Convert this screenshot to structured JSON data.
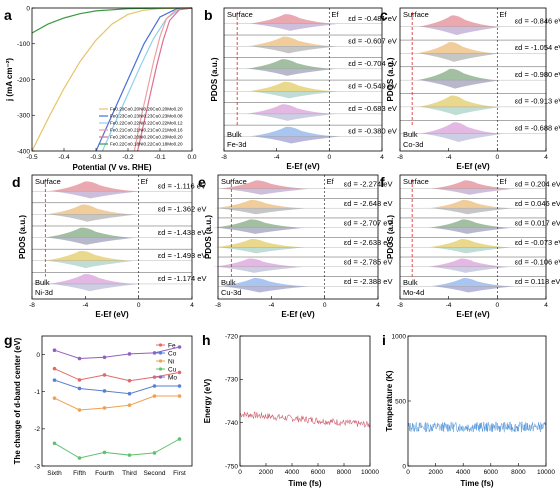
{
  "chart_data": [
    {
      "panel": "a",
      "type": "line",
      "xlabel": "Potential (V vs. RHE)",
      "ylabel": "j (mA cm⁻²)",
      "xlim": [
        -0.5,
        0.0
      ],
      "ylim": [
        -400,
        0
      ],
      "xticks": [
        "-0.5",
        "-0.4",
        "-0.3",
        "-0.2",
        "-0.1",
        "0.0"
      ],
      "yticks": [
        "0",
        "-100",
        "-200",
        "-300",
        "-400"
      ],
      "legend_position": "lower-right",
      "series": [
        {
          "name": "Fe0.20Co0.20Ni0.20Cu0.20Mo0.20",
          "color": "#e8c36a",
          "x": [
            -0.5,
            -0.45,
            -0.4,
            -0.35,
            -0.3,
            -0.25,
            -0.2,
            -0.15,
            -0.1,
            -0.05,
            0.0
          ],
          "y": [
            -400,
            -310,
            -225,
            -150,
            -90,
            -45,
            -18,
            -6,
            -2,
            -0.5,
            0
          ]
        },
        {
          "name": "Fe0.23Co0.23Ni0.23Cu0.23Mo0.08",
          "color": "#4a6fd6",
          "x": [
            -0.3,
            -0.25,
            -0.2,
            -0.15,
            -0.1,
            -0.05,
            0.0
          ],
          "y": [
            -400,
            -300,
            -200,
            -100,
            -25,
            -3,
            0
          ]
        },
        {
          "name": "Fe0.22Co0.22Ni0.22Cu0.22Mo0.12",
          "color": "#8fd0f0",
          "x": [
            -0.28,
            -0.24,
            -0.2,
            -0.16,
            -0.12,
            -0.08,
            -0.04,
            0.0
          ],
          "y": [
            -400,
            -320,
            -240,
            -160,
            -85,
            -30,
            -4,
            0
          ]
        },
        {
          "name": "Fe0.21Co0.21Ni0.21Cu0.21Mo0.16",
          "color": "#f0a0a0",
          "x": [
            -0.18,
            -0.16,
            -0.14,
            -0.12,
            -0.1,
            -0.08,
            -0.05,
            0.0
          ],
          "y": [
            -400,
            -310,
            -230,
            -150,
            -80,
            -30,
            -5,
            0
          ]
        },
        {
          "name": "Fe0.20Co0.20Ni0.20Cu0.20Mo0.20",
          "color": "#e07090",
          "x": [
            -0.17,
            -0.15,
            -0.13,
            -0.11,
            -0.09,
            -0.07,
            -0.04,
            0.0
          ],
          "y": [
            -400,
            -320,
            -240,
            -160,
            -90,
            -35,
            -5,
            0
          ]
        },
        {
          "name": "Fe0.22Co0.18Ni0.22Cu0.18Mo0.20",
          "color": "#3a9a40",
          "x": [
            -0.5,
            -0.45,
            -0.4,
            -0.35,
            -0.3,
            -0.2,
            -0.1,
            0.0
          ],
          "y": [
            -70,
            -45,
            -28,
            -16,
            -8,
            -2,
            -0.5,
            0
          ]
        }
      ]
    },
    {
      "panel": "b",
      "type": "area",
      "element": "Fe-3d",
      "xlabel": "E-Ef (eV)",
      "ylabel": "PDOS (a.u.)",
      "xlim": [
        -8,
        4
      ],
      "xticks": [
        "-8",
        "-4",
        "0",
        "4"
      ],
      "surface_label": "Surface",
      "bulk_label": "Bulk",
      "fermi_label": "Ef",
      "ed_values": [
        -0.481,
        -0.607,
        -0.704,
        -0.549,
        -0.683,
        -0.38
      ],
      "ed_labels": [
        "εd = -0.481 eV",
        "εd = -0.607 eV",
        "εd = -0.704 eV",
        "εd = -0.549 eV",
        "εd = -0.683 eV",
        "εd = -0.380 eV"
      ]
    },
    {
      "panel": "c",
      "type": "area",
      "element": "Co-3d",
      "xlabel": "E-Ef (eV)",
      "ylabel": "PDOS (a.u.)",
      "xlim": [
        -8,
        4
      ],
      "xticks": [
        "-8",
        "-4",
        "0",
        "4"
      ],
      "surface_label": "Surface",
      "bulk_label": "Bulk",
      "fermi_label": "Ef",
      "ed_values": [
        -0.846,
        -1.054,
        -0.98,
        -0.913,
        -0.688
      ],
      "ed_labels": [
        "εd = -0.846 eV",
        "εd = -1.054 eV",
        "εd = -0.980 eV",
        "εd = -0.913 eV",
        "εd = -0.688 eV"
      ]
    },
    {
      "panel": "d",
      "type": "area",
      "element": "Ni-3d",
      "xlabel": "E-Ef (eV)",
      "ylabel": "PDOS (a.u.)",
      "xlim": [
        -8,
        4
      ],
      "xticks": [
        "-8",
        "-4",
        "0",
        "4"
      ],
      "surface_label": "Surface",
      "bulk_label": "Bulk",
      "fermi_label": "Ef",
      "ed_values": [
        -1.116,
        -1.362,
        -1.438,
        -1.493,
        -1.174
      ],
      "ed_labels": [
        "εd = -1.116 eV",
        "εd = -1.362 eV",
        "εd = -1.438 eV",
        "εd = -1.493 eV",
        "εd = -1.174 eV"
      ]
    },
    {
      "panel": "e",
      "type": "area",
      "element": "Cu-3d",
      "xlabel": "E-Ef (eV)",
      "ylabel": "PDOS (a.u.)",
      "xlim": [
        -8,
        4
      ],
      "xticks": [
        "-8",
        "-4",
        "0",
        "4"
      ],
      "surface_label": "Surface",
      "bulk_label": "Bulk",
      "fermi_label": "Ef",
      "ed_values": [
        -2.274,
        -2.648,
        -2.707,
        -2.633,
        -2.785,
        -2.388
      ],
      "ed_labels": [
        "εd = -2.274 eV",
        "εd = -2.648 eV",
        "εd = -2.707 eV",
        "εd = -2.633 eV",
        "εd = -2.785 eV",
        "εd = -2.388 eV"
      ]
    },
    {
      "panel": "f",
      "type": "area",
      "element": "Mo-4d",
      "xlabel": "E-Ef (eV)",
      "ylabel": "PDOS (a.u.)",
      "xlim": [
        -8,
        4
      ],
      "xticks": [
        "-8",
        "-4",
        "0",
        "4"
      ],
      "surface_label": "Surface",
      "bulk_label": "Bulk",
      "fermi_label": "Ef",
      "ed_values": [
        0.204,
        0.046,
        0.017,
        -0.073,
        -0.106,
        0.118
      ],
      "ed_labels": [
        "εd = 0.204 eV",
        "εd = 0.046 eV",
        "εd = 0.017 eV",
        "εd = -0.073 eV",
        "εd = -0.106 eV",
        "εd = 0.118 eV"
      ]
    },
    {
      "panel": "g",
      "type": "line",
      "ylabel": "The change of d-band center (eV)",
      "categories": [
        "Sixth",
        "Fifth",
        "Fourth",
        "Third",
        "Second",
        "First"
      ],
      "ylim": [
        -3.0,
        0.5
      ],
      "yticks": [
        "-3",
        "-2",
        "-1",
        "0"
      ],
      "legend_position": "top-right",
      "series": [
        {
          "name": "Fe",
          "color": "#e06a6a",
          "values": [
            -0.38,
            -0.683,
            -0.549,
            -0.704,
            -0.607,
            -0.481
          ]
        },
        {
          "name": "Co",
          "color": "#5a7fd0",
          "values": [
            -0.688,
            -0.913,
            -0.98,
            -1.054,
            -0.846,
            -0.846
          ]
        },
        {
          "name": "Ni",
          "color": "#f0a050",
          "values": [
            -1.174,
            -1.493,
            -1.438,
            -1.362,
            -1.116,
            -1.116
          ]
        },
        {
          "name": "Cu",
          "color": "#60c070",
          "values": [
            -2.388,
            -2.785,
            -2.633,
            -2.707,
            -2.648,
            -2.274
          ]
        },
        {
          "name": "Mo",
          "color": "#9060c0",
          "values": [
            0.118,
            -0.106,
            -0.073,
            0.017,
            0.046,
            0.204
          ]
        }
      ]
    },
    {
      "panel": "h",
      "type": "line",
      "xlabel": "Time (fs)",
      "ylabel": "Energy (eV)",
      "xlim": [
        0,
        10000
      ],
      "ylim": [
        -750,
        -720
      ],
      "xticks": [
        "0",
        "2000",
        "4000",
        "6000",
        "8000",
        "10000"
      ],
      "yticks": [
        "-720",
        "-730",
        "-740",
        "-750"
      ],
      "series": [
        {
          "color": "#d06070",
          "x": [
            0,
            10000
          ],
          "y": [
            -738,
            -740.5
          ]
        }
      ]
    },
    {
      "panel": "i",
      "type": "line",
      "xlabel": "Time (fs)",
      "ylabel": "Temperature (K)",
      "xlim": [
        0,
        10000
      ],
      "ylim": [
        0,
        1000
      ],
      "xticks": [
        "0",
        "2000",
        "4000",
        "6000",
        "8000",
        "10000"
      ],
      "yticks": [
        "0",
        "500",
        "1000"
      ],
      "series": [
        {
          "color": "#4a90d8",
          "x": [
            0,
            10000
          ],
          "y": [
            300,
            300
          ]
        }
      ]
    }
  ]
}
